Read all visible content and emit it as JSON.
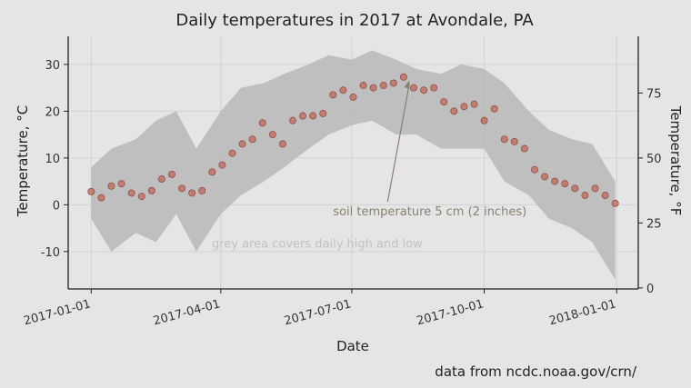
{
  "chart_data": {
    "type": "scatter",
    "title": "Daily temperatures in 2017 at Avondale, PA",
    "xlabel": "Date",
    "ylabel": "Temperature, °C",
    "ylabel_right": "Temperature, °F",
    "xlim": [
      "2016-12-16",
      "2018-01-16"
    ],
    "ylim": [
      -18,
      36
    ],
    "x_ticks": [
      "2017-01-01",
      "2017-04-01",
      "2017-07-01",
      "2017-10-01",
      "2018-01-01"
    ],
    "y_ticks": [
      -10,
      0,
      10,
      20,
      30
    ],
    "y_ticks_right": [
      0,
      25,
      50,
      75
    ],
    "grid": true,
    "caption": "data from ncdc.noaa.gov/crn/",
    "colors": {
      "points": "#c0685a",
      "points_edge": "#8f4f47",
      "band": "#b8b8b8",
      "annotation": "#8a8070",
      "band_note": "#c2c2c2"
    },
    "annotations": [
      {
        "text": "soil temperature 5 cm (2 inches)",
        "x": "2017-06-18",
        "y": -1.3,
        "arrow_to_x": "2017-08-10",
        "arrow_to_y": 27
      },
      {
        "text": "grey area covers daily high and low",
        "x": "2017-06-07",
        "y": -8.2
      }
    ],
    "series": [
      {
        "kind": "band",
        "x": [
          "2017-01-01",
          "2017-01-15",
          "2017-02-01",
          "2017-02-15",
          "2017-03-01",
          "2017-03-15",
          "2017-04-01",
          "2017-04-15",
          "2017-05-01",
          "2017-05-15",
          "2017-06-01",
          "2017-06-15",
          "2017-07-01",
          "2017-07-15",
          "2017-08-01",
          "2017-08-15",
          "2017-09-01",
          "2017-09-15",
          "2017-10-01",
          "2017-10-15",
          "2017-11-01",
          "2017-11-15",
          "2017-12-01",
          "2017-12-15",
          "2017-12-31"
        ],
        "low": [
          -3,
          -10,
          -6,
          -8,
          -2,
          -10,
          -2,
          2,
          5,
          8,
          12,
          15,
          17,
          18,
          15,
          15,
          12,
          12,
          12,
          5,
          2,
          -3,
          -5,
          -8,
          -16
        ],
        "high": [
          8,
          12,
          14,
          18,
          20,
          12,
          20,
          25,
          26,
          28,
          30,
          32,
          31,
          33,
          31,
          29,
          28,
          30,
          29,
          26,
          20,
          16,
          14,
          13,
          5
        ]
      },
      {
        "kind": "points",
        "x": [
          "2017-01-01",
          "2017-01-08",
          "2017-01-15",
          "2017-01-22",
          "2017-01-29",
          "2017-02-05",
          "2017-02-12",
          "2017-02-19",
          "2017-02-26",
          "2017-03-05",
          "2017-03-12",
          "2017-03-19",
          "2017-03-26",
          "2017-04-02",
          "2017-04-09",
          "2017-04-16",
          "2017-04-23",
          "2017-04-30",
          "2017-05-07",
          "2017-05-14",
          "2017-05-21",
          "2017-05-28",
          "2017-06-04",
          "2017-06-11",
          "2017-06-18",
          "2017-06-25",
          "2017-07-02",
          "2017-07-09",
          "2017-07-16",
          "2017-07-23",
          "2017-07-30",
          "2017-08-06",
          "2017-08-13",
          "2017-08-20",
          "2017-08-27",
          "2017-09-03",
          "2017-09-10",
          "2017-09-17",
          "2017-09-24",
          "2017-10-01",
          "2017-10-08",
          "2017-10-15",
          "2017-10-22",
          "2017-10-29",
          "2017-11-05",
          "2017-11-12",
          "2017-11-19",
          "2017-11-26",
          "2017-12-03",
          "2017-12-10",
          "2017-12-17",
          "2017-12-24",
          "2017-12-31"
        ],
        "y": [
          2.8,
          1.5,
          4.0,
          4.5,
          2.5,
          1.8,
          3.0,
          5.5,
          6.5,
          3.5,
          2.5,
          3.0,
          7.0,
          8.5,
          11.0,
          13.0,
          14.0,
          17.5,
          15.0,
          13.0,
          18.0,
          19.0,
          19.0,
          19.5,
          23.5,
          24.5,
          23.0,
          25.5,
          25.0,
          25.5,
          26.0,
          27.3,
          25.0,
          24.5,
          25.0,
          22.0,
          20.0,
          21.0,
          21.5,
          18.0,
          20.5,
          14.0,
          13.5,
          12.0,
          7.5,
          6.0,
          5.0,
          4.5,
          3.5,
          2.0,
          3.5,
          2.0,
          0.3
        ]
      }
    ]
  }
}
